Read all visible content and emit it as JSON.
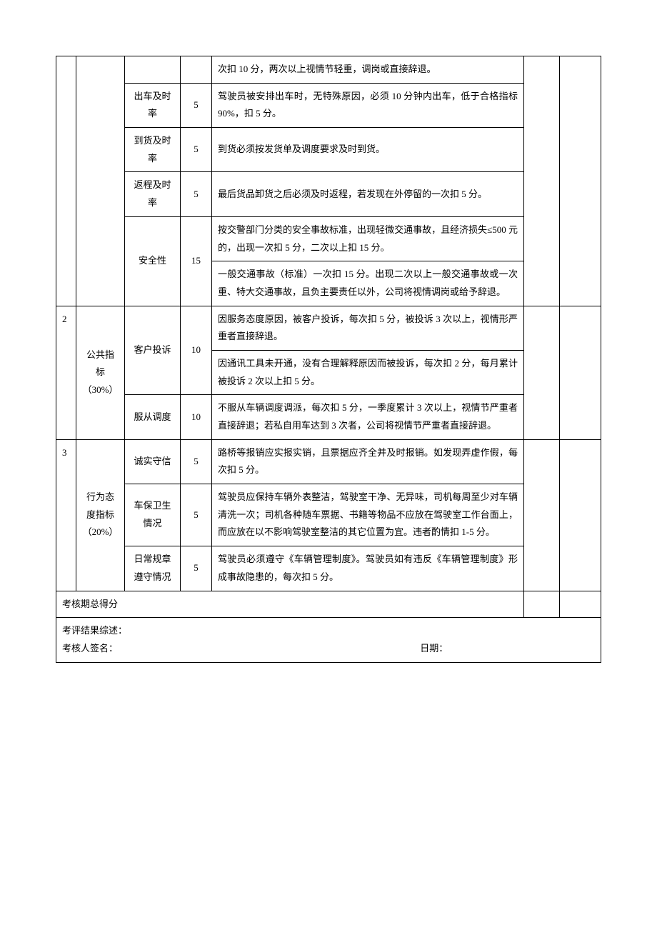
{
  "rows": {
    "r1_desc": "次扣 10 分，两次以上视情节轻重，调岗或直接辞退。",
    "r2_ind": "出车及时率",
    "r2_score": "5",
    "r2_desc": "驾驶员被安排出车时，无特殊原因，必须 10 分钟内出车，低于合格指标 90%，扣 5 分。",
    "r3_ind": "到货及时率",
    "r3_score": "5",
    "r3_desc": "到货必须按发货单及调度要求及时到货。",
    "r4_ind": "返程及时率",
    "r4_score": "5",
    "r4_desc": "最后货品卸货之后必须及时返程，若发现在外停留的一次扣 5 分。",
    "r5_ind": "安全性",
    "r5_score": "15",
    "r5a_desc": "按交警部门分类的安全事故标准，出现轻微交通事故，且经济损失≤500 元的，出现一次扣 5 分，二次以上扣 15 分。",
    "r5b_desc": "一般交通事故（标准）一次扣 15 分。出现二次以上一般交通事故或一次重、特大交通事故，且负主要责任以外，公司将视情调岗或给予辞退。",
    "sec2_num": "2",
    "sec2_cat": "公共指标（30%）",
    "r6_ind": "客户投诉",
    "r6_score": "10",
    "r6a_desc": "因服务态度原因，被客户投诉，每次扣 5 分，被投诉 3 次以上，视情形严重者直接辞退。",
    "r6b_desc": "因通讯工具未开通，没有合理解释原因而被投诉，每次扣 2 分，每月累计被投诉 2 次以上扣 5 分。",
    "r7_ind": "服从调度",
    "r7_score": "10",
    "r7_desc": "不服从车辆调度调派，每次扣 5 分，一季度累计 3 次以上，视情节严重者直接辞退；若私自用车达到 3 次者，公司将视情节严重者直接辞退。",
    "sec3_num": "3",
    "sec3_cat": "行为态度指标（20%）",
    "r8_ind": "诚实守信",
    "r8_score": "5",
    "r8_desc": "路桥等报销应实报实销，且票据应齐全并及时报销。如发现弄虚作假，每次扣 5 分。",
    "r9_ind": "车保卫生情况",
    "r9_score": "5",
    "r9_desc": "驾驶员应保持车辆外表整洁，驾驶室干净、无异味，司机每周至少对车辆清洗一次；司机各种随车票据、书籍等物品不应放在驾驶室工作台面上，而应放在以不影响驾驶室整洁的其它位置为宜。违者酌情扣 1-5 分。",
    "r10_ind": "日常规章遵守情况",
    "r10_score": "5",
    "r10_desc": "驾驶员必须遵守《车辆管理制度》。驾驶员如有违反《车辆管理制度》形成事故隐患的，每次扣 5 分。"
  },
  "footer": {
    "total": "考核期总得分",
    "summary": "考评结果综述：",
    "signer": "考核人签名：",
    "date": "日期："
  }
}
